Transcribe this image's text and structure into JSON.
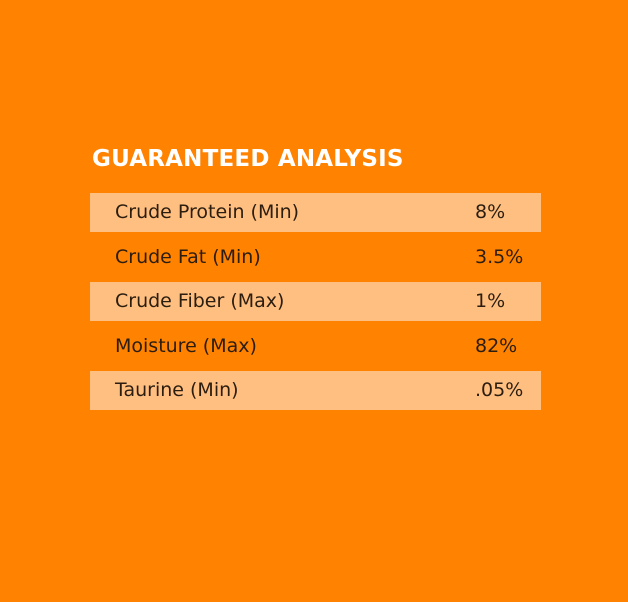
{
  "header": {
    "title": "GUARANTEED ANALYSIS"
  },
  "table": {
    "rows": [
      [
        "Crude Protein (Min)",
        "8%"
      ],
      [
        "Crude Fat (Min)",
        "3.5%"
      ],
      [
        "Crude Fiber (Max)",
        "1%"
      ],
      [
        "Moisture (Max)",
        "82%"
      ],
      [
        "Taurine (Min)",
        ".05%"
      ]
    ]
  }
}
